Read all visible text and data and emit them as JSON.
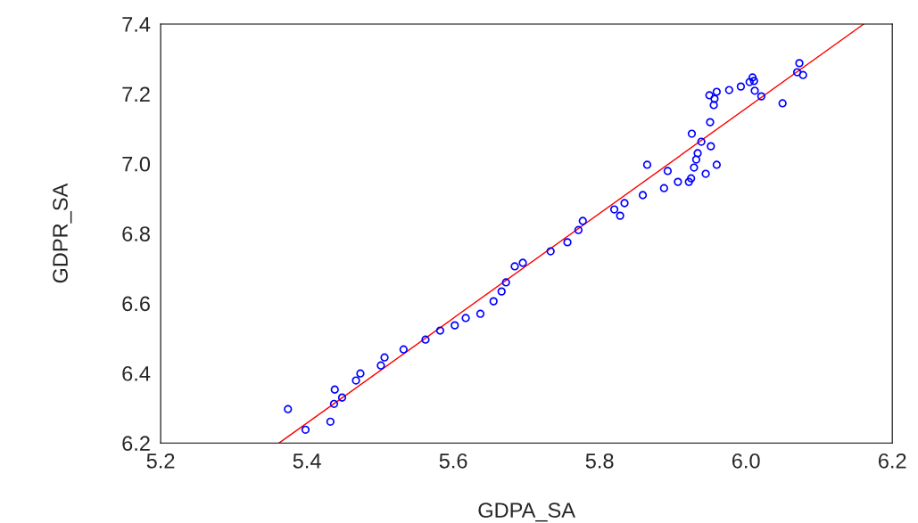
{
  "chart_data": {
    "type": "scatter",
    "xlabel": "GDPA_SA",
    "ylabel": "GDPR_SA",
    "xlim": [
      5.2,
      6.2
    ],
    "ylim": [
      6.2,
      7.4
    ],
    "xticks": [
      5.2,
      5.4,
      5.6,
      5.8,
      {
        "value": 6.0,
        "label": "6.0"
      },
      6.2
    ],
    "yticks": [
      6.2,
      6.4,
      6.6,
      6.8,
      {
        "value": 7.0,
        "label": "7.0"
      },
      7.2,
      7.4
    ],
    "grid": false,
    "legend": false,
    "series": [
      {
        "color": "#0000ff",
        "marker": "circle",
        "x": [
          5.374,
          5.398,
          5.432,
          5.437,
          5.438,
          5.448,
          5.467,
          5.473,
          5.501,
          5.506,
          5.532,
          5.562,
          5.582,
          5.602,
          5.617,
          5.637,
          5.655,
          5.666,
          5.672,
          5.684,
          5.695,
          5.733,
          5.756,
          5.771,
          5.777,
          5.82,
          5.828,
          5.834,
          5.859,
          5.865,
          5.888,
          5.893,
          5.907,
          5.922,
          5.925,
          5.929,
          5.932,
          5.934,
          5.939,
          5.945,
          5.926,
          5.952,
          5.96,
          5.951,
          5.95,
          5.956,
          5.957,
          5.96,
          5.977,
          5.993,
          6.005,
          6.009,
          6.011,
          6.012,
          6.021,
          6.05,
          6.07,
          6.073,
          6.078
        ],
        "values": [
          6.297,
          6.238,
          6.261,
          6.312,
          6.353,
          6.33,
          6.379,
          6.399,
          6.422,
          6.445,
          6.468,
          6.496,
          6.522,
          6.537,
          6.558,
          6.57,
          6.606,
          6.634,
          6.66,
          6.706,
          6.716,
          6.749,
          6.775,
          6.81,
          6.836,
          6.869,
          6.851,
          6.887,
          6.91,
          6.997,
          6.93,
          6.979,
          6.948,
          6.948,
          6.958,
          6.989,
          7.012,
          7.03,
          7.063,
          6.971,
          7.086,
          7.05,
          6.997,
          7.119,
          7.196,
          7.168,
          7.186,
          7.206,
          7.211,
          7.221,
          7.234,
          7.247,
          7.237,
          7.209,
          7.193,
          7.173,
          7.262,
          7.288,
          7.254
        ]
      },
      {
        "type": "line",
        "color": "#ff0000",
        "line_style": "solid",
        "x": [
          5.362,
          6.161
        ],
        "values": [
          6.2,
          7.4
        ]
      }
    ]
  }
}
